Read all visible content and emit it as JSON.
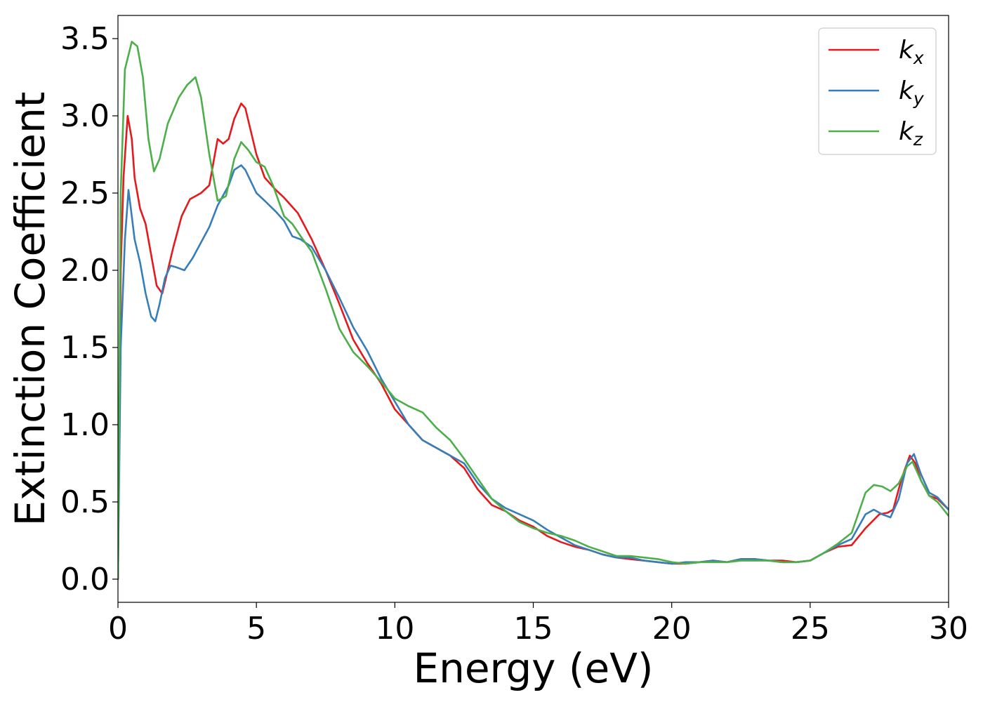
{
  "chart_data": {
    "type": "line",
    "title": "",
    "xlabel": "Energy (eV)",
    "ylabel": "Extinction Coefficient",
    "xlim": [
      0,
      30
    ],
    "ylim": [
      -0.15,
      3.65
    ],
    "xticks": [
      0,
      5,
      10,
      15,
      20,
      25,
      30
    ],
    "xtick_labels": [
      "0",
      "5",
      "10",
      "15",
      "20",
      "25",
      "30"
    ],
    "yticks": [
      0.0,
      0.5,
      1.0,
      1.5,
      2.0,
      2.5,
      3.0,
      3.5
    ],
    "ytick_labels": [
      "0.0",
      "0.5",
      "1.0",
      "1.5",
      "2.0",
      "2.5",
      "3.0",
      "3.5"
    ],
    "grid": false,
    "legend": {
      "placement": "top-right"
    },
    "series": [
      {
        "name": "k_x",
        "label_base": "k",
        "label_sub": "x",
        "color": "#e41a1c",
        "points": [
          [
            0.0,
            0.0
          ],
          [
            0.1,
            2.0
          ],
          [
            0.2,
            2.6
          ],
          [
            0.35,
            3.0
          ],
          [
            0.5,
            2.85
          ],
          [
            0.6,
            2.6
          ],
          [
            0.8,
            2.4
          ],
          [
            1.0,
            2.3
          ],
          [
            1.2,
            2.1
          ],
          [
            1.4,
            1.9
          ],
          [
            1.6,
            1.85
          ],
          [
            1.8,
            2.0
          ],
          [
            2.0,
            2.15
          ],
          [
            2.3,
            2.35
          ],
          [
            2.6,
            2.46
          ],
          [
            3.0,
            2.5
          ],
          [
            3.3,
            2.55
          ],
          [
            3.6,
            2.85
          ],
          [
            3.8,
            2.82
          ],
          [
            4.0,
            2.85
          ],
          [
            4.2,
            2.98
          ],
          [
            4.45,
            3.08
          ],
          [
            4.6,
            3.05
          ],
          [
            5.0,
            2.75
          ],
          [
            5.3,
            2.6
          ],
          [
            5.7,
            2.52
          ],
          [
            6.0,
            2.47
          ],
          [
            6.5,
            2.37
          ],
          [
            7.0,
            2.2
          ],
          [
            7.5,
            2.0
          ],
          [
            8.0,
            1.78
          ],
          [
            8.5,
            1.55
          ],
          [
            9.0,
            1.4
          ],
          [
            9.5,
            1.27
          ],
          [
            10.0,
            1.1
          ],
          [
            10.5,
            1.0
          ],
          [
            11.0,
            0.9
          ],
          [
            11.5,
            0.85
          ],
          [
            12.0,
            0.8
          ],
          [
            12.5,
            0.72
          ],
          [
            13.0,
            0.58
          ],
          [
            13.5,
            0.48
          ],
          [
            14.0,
            0.44
          ],
          [
            14.5,
            0.38
          ],
          [
            15.0,
            0.34
          ],
          [
            15.5,
            0.28
          ],
          [
            16.0,
            0.24
          ],
          [
            16.5,
            0.21
          ],
          [
            17.0,
            0.19
          ],
          [
            17.5,
            0.16
          ],
          [
            18.0,
            0.14
          ],
          [
            18.5,
            0.13
          ],
          [
            19.0,
            0.12
          ],
          [
            19.5,
            0.11
          ],
          [
            20.0,
            0.1
          ],
          [
            20.5,
            0.1
          ],
          [
            21.0,
            0.11
          ],
          [
            21.5,
            0.12
          ],
          [
            22.0,
            0.11
          ],
          [
            22.5,
            0.13
          ],
          [
            23.0,
            0.13
          ],
          [
            23.5,
            0.12
          ],
          [
            24.0,
            0.12
          ],
          [
            24.5,
            0.11
          ],
          [
            25.0,
            0.12
          ],
          [
            25.5,
            0.17
          ],
          [
            26.0,
            0.21
          ],
          [
            26.5,
            0.22
          ],
          [
            27.0,
            0.33
          ],
          [
            27.5,
            0.42
          ],
          [
            27.8,
            0.43
          ],
          [
            28.0,
            0.45
          ],
          [
            28.3,
            0.65
          ],
          [
            28.6,
            0.8
          ],
          [
            28.8,
            0.75
          ],
          [
            29.0,
            0.64
          ],
          [
            29.3,
            0.54
          ],
          [
            29.6,
            0.52
          ],
          [
            30.0,
            0.45
          ]
        ]
      },
      {
        "name": "k_y",
        "label_base": "k",
        "label_sub": "y",
        "color": "#377eb8",
        "points": [
          [
            0.0,
            0.0
          ],
          [
            0.1,
            1.5
          ],
          [
            0.25,
            2.2
          ],
          [
            0.38,
            2.52
          ],
          [
            0.5,
            2.35
          ],
          [
            0.6,
            2.2
          ],
          [
            0.8,
            2.05
          ],
          [
            1.0,
            1.85
          ],
          [
            1.2,
            1.7
          ],
          [
            1.35,
            1.67
          ],
          [
            1.5,
            1.78
          ],
          [
            1.7,
            1.95
          ],
          [
            1.9,
            2.03
          ],
          [
            2.1,
            2.02
          ],
          [
            2.4,
            2.0
          ],
          [
            2.7,
            2.08
          ],
          [
            3.0,
            2.18
          ],
          [
            3.3,
            2.28
          ],
          [
            3.6,
            2.42
          ],
          [
            4.0,
            2.55
          ],
          [
            4.2,
            2.65
          ],
          [
            4.45,
            2.68
          ],
          [
            4.6,
            2.65
          ],
          [
            5.0,
            2.5
          ],
          [
            5.3,
            2.45
          ],
          [
            5.7,
            2.38
          ],
          [
            6.0,
            2.32
          ],
          [
            6.3,
            2.22
          ],
          [
            6.6,
            2.2
          ],
          [
            7.0,
            2.15
          ],
          [
            7.5,
            2.0
          ],
          [
            8.0,
            1.82
          ],
          [
            8.5,
            1.63
          ],
          [
            9.0,
            1.48
          ],
          [
            9.5,
            1.3
          ],
          [
            10.0,
            1.15
          ],
          [
            10.5,
            1.0
          ],
          [
            11.0,
            0.9
          ],
          [
            11.5,
            0.85
          ],
          [
            12.0,
            0.8
          ],
          [
            12.5,
            0.75
          ],
          [
            13.0,
            0.62
          ],
          [
            13.5,
            0.52
          ],
          [
            14.0,
            0.46
          ],
          [
            14.5,
            0.42
          ],
          [
            15.0,
            0.38
          ],
          [
            15.5,
            0.32
          ],
          [
            16.0,
            0.27
          ],
          [
            16.5,
            0.22
          ],
          [
            17.0,
            0.19
          ],
          [
            17.5,
            0.16
          ],
          [
            18.0,
            0.14
          ],
          [
            18.5,
            0.14
          ],
          [
            19.0,
            0.12
          ],
          [
            19.5,
            0.11
          ],
          [
            20.0,
            0.1
          ],
          [
            20.5,
            0.11
          ],
          [
            21.0,
            0.11
          ],
          [
            21.5,
            0.12
          ],
          [
            22.0,
            0.11
          ],
          [
            22.5,
            0.13
          ],
          [
            23.0,
            0.13
          ],
          [
            23.5,
            0.12
          ],
          [
            24.0,
            0.11
          ],
          [
            24.5,
            0.11
          ],
          [
            25.0,
            0.12
          ],
          [
            25.5,
            0.17
          ],
          [
            26.0,
            0.22
          ],
          [
            26.5,
            0.26
          ],
          [
            27.0,
            0.42
          ],
          [
            27.3,
            0.45
          ],
          [
            27.6,
            0.42
          ],
          [
            27.9,
            0.4
          ],
          [
            28.2,
            0.52
          ],
          [
            28.5,
            0.75
          ],
          [
            28.75,
            0.81
          ],
          [
            29.0,
            0.68
          ],
          [
            29.3,
            0.56
          ],
          [
            29.6,
            0.53
          ],
          [
            30.0,
            0.45
          ]
        ]
      },
      {
        "name": "k_z",
        "label_base": "k",
        "label_sub": "z",
        "color": "#4daf4a",
        "points": [
          [
            0.0,
            0.0
          ],
          [
            0.1,
            2.5
          ],
          [
            0.25,
            3.3
          ],
          [
            0.5,
            3.48
          ],
          [
            0.7,
            3.45
          ],
          [
            0.9,
            3.25
          ],
          [
            1.1,
            2.85
          ],
          [
            1.3,
            2.64
          ],
          [
            1.5,
            2.72
          ],
          [
            1.8,
            2.95
          ],
          [
            2.2,
            3.12
          ],
          [
            2.5,
            3.2
          ],
          [
            2.8,
            3.25
          ],
          [
            3.0,
            3.12
          ],
          [
            3.3,
            2.75
          ],
          [
            3.6,
            2.45
          ],
          [
            3.9,
            2.48
          ],
          [
            4.2,
            2.72
          ],
          [
            4.45,
            2.83
          ],
          [
            4.7,
            2.78
          ],
          [
            5.0,
            2.7
          ],
          [
            5.3,
            2.67
          ],
          [
            5.6,
            2.55
          ],
          [
            6.0,
            2.35
          ],
          [
            6.3,
            2.3
          ],
          [
            6.6,
            2.22
          ],
          [
            7.0,
            2.12
          ],
          [
            7.5,
            1.88
          ],
          [
            8.0,
            1.62
          ],
          [
            8.5,
            1.47
          ],
          [
            9.0,
            1.38
          ],
          [
            9.5,
            1.28
          ],
          [
            10.0,
            1.17
          ],
          [
            10.5,
            1.12
          ],
          [
            11.0,
            1.08
          ],
          [
            11.5,
            0.98
          ],
          [
            12.0,
            0.9
          ],
          [
            12.5,
            0.78
          ],
          [
            13.0,
            0.65
          ],
          [
            13.5,
            0.52
          ],
          [
            14.0,
            0.44
          ],
          [
            14.5,
            0.37
          ],
          [
            15.0,
            0.33
          ],
          [
            15.5,
            0.3
          ],
          [
            16.0,
            0.28
          ],
          [
            16.5,
            0.25
          ],
          [
            17.0,
            0.21
          ],
          [
            17.5,
            0.18
          ],
          [
            18.0,
            0.15
          ],
          [
            18.5,
            0.15
          ],
          [
            19.0,
            0.14
          ],
          [
            19.5,
            0.13
          ],
          [
            20.0,
            0.11
          ],
          [
            20.5,
            0.1
          ],
          [
            21.0,
            0.11
          ],
          [
            21.5,
            0.11
          ],
          [
            22.0,
            0.11
          ],
          [
            22.5,
            0.12
          ],
          [
            23.0,
            0.12
          ],
          [
            23.5,
            0.12
          ],
          [
            24.0,
            0.11
          ],
          [
            24.5,
            0.11
          ],
          [
            25.0,
            0.12
          ],
          [
            25.5,
            0.17
          ],
          [
            26.0,
            0.23
          ],
          [
            26.5,
            0.3
          ],
          [
            27.0,
            0.56
          ],
          [
            27.3,
            0.61
          ],
          [
            27.6,
            0.6
          ],
          [
            27.9,
            0.57
          ],
          [
            28.2,
            0.62
          ],
          [
            28.5,
            0.73
          ],
          [
            28.7,
            0.76
          ],
          [
            29.0,
            0.64
          ],
          [
            29.3,
            0.54
          ],
          [
            29.6,
            0.5
          ],
          [
            30.0,
            0.41
          ]
        ]
      }
    ]
  }
}
